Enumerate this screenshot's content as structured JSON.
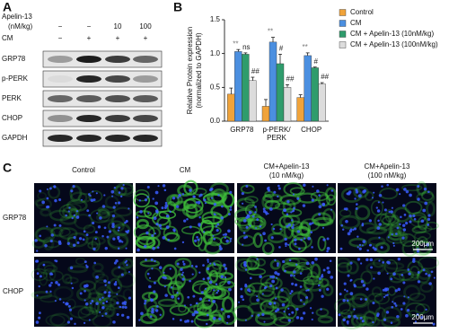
{
  "figure": {
    "panel_labels": [
      "A",
      "B",
      "C"
    ]
  },
  "blot": {
    "treatment_label": "Apelin-13",
    "unit_label": "(nM/kg)",
    "cm_label": "CM",
    "apelin_doses": [
      "−",
      "−",
      "10",
      "100"
    ],
    "cm": [
      "−",
      "+",
      "+",
      "+"
    ],
    "rows": [
      "GRP78",
      "p-PERK",
      "PERK",
      "CHOP",
      "GAPDH"
    ]
  },
  "chart_data": {
    "type": "bar",
    "ylabel": [
      "Relative Protein expression",
      "(normalized to GAPDH)"
    ],
    "categories": [
      "GRP78",
      "p-PERK/PERK",
      "CHOP"
    ],
    "ylim": [
      0,
      1.5
    ],
    "yticks": [
      {
        "value": 0,
        "label": "0.0"
      },
      {
        "value": 0.5,
        "label": "0.5"
      },
      {
        "value": 1,
        "label": "1.0"
      },
      {
        "value": 1.5,
        "label": "1.5"
      }
    ],
    "series": [
      {
        "name": "Control",
        "color": "#f0a33a",
        "values": [
          0.4,
          0.22,
          0.35
        ],
        "errors": [
          0.09,
          0.1,
          0.04
        ]
      },
      {
        "name": "CM",
        "color": "#4b8fe0",
        "values": [
          1.03,
          1.17,
          0.97
        ],
        "errors": [
          0.03,
          0.07,
          0.04
        ],
        "sig": [
          "**",
          "**",
          "**"
        ],
        "sig_color": "#777777"
      },
      {
        "name": "CM + Apelin-13 (10nM/kg)",
        "color": "#2f9c6c",
        "values": [
          0.99,
          0.85,
          0.79
        ],
        "errors": [
          0.02,
          0.14,
          0.01
        ],
        "sig": [
          "ns",
          "#",
          "#"
        ],
        "sig_color": "#222222"
      },
      {
        "name": "CM + Apelin-13 (100nM/kg)",
        "color": "#dcdcdc",
        "values": [
          0.6,
          0.5,
          0.55
        ],
        "errors": [
          0.05,
          0.04,
          0.02
        ],
        "sig": [
          "##",
          "##",
          "##"
        ],
        "sig_color": "#222222"
      }
    ]
  },
  "images": {
    "columns": [
      {
        "title": "Control"
      },
      {
        "title": "CM"
      },
      {
        "title": "CM+Apelin-13",
        "subtitle": "(10 nM/kg)"
      },
      {
        "title": "CM+Apelin-13",
        "subtitle": "(100 nM/kg)"
      }
    ],
    "rows": [
      "GRP78",
      "CHOP"
    ],
    "scale_bar": "200μm"
  }
}
